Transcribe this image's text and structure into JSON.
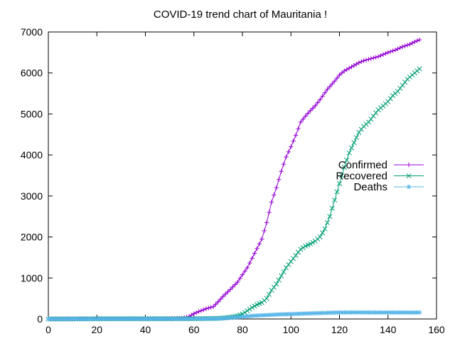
{
  "chart_data": {
    "type": "line",
    "title": "COVID-19 trend chart of Mauritania !",
    "xlabel": "",
    "ylabel": "",
    "xlim": [
      0,
      160
    ],
    "ylim": [
      0,
      7000
    ],
    "xticks": [
      0,
      20,
      40,
      60,
      80,
      100,
      120,
      140,
      160
    ],
    "yticks": [
      0,
      1000,
      2000,
      3000,
      4000,
      5000,
      6000,
      7000
    ],
    "grid": false,
    "legend_position": "right",
    "series": [
      {
        "name": "Confirmed",
        "color": "#9400d3",
        "marker": "plus",
        "points": [
          [
            0,
            0
          ],
          [
            10,
            2
          ],
          [
            20,
            6
          ],
          [
            30,
            7
          ],
          [
            40,
            8
          ],
          [
            50,
            9
          ],
          [
            55,
            20
          ],
          [
            58,
            60
          ],
          [
            60,
            130
          ],
          [
            62,
            180
          ],
          [
            65,
            250
          ],
          [
            68,
            300
          ],
          [
            70,
            420
          ],
          [
            72,
            550
          ],
          [
            75,
            720
          ],
          [
            78,
            900
          ],
          [
            80,
            1080
          ],
          [
            82,
            1250
          ],
          [
            85,
            1600
          ],
          [
            88,
            1950
          ],
          [
            90,
            2350
          ],
          [
            92,
            2850
          ],
          [
            94,
            3200
          ],
          [
            96,
            3600
          ],
          [
            98,
            3950
          ],
          [
            100,
            4200
          ],
          [
            102,
            4480
          ],
          [
            104,
            4800
          ],
          [
            106,
            4950
          ],
          [
            108,
            5080
          ],
          [
            110,
            5200
          ],
          [
            112,
            5350
          ],
          [
            115,
            5600
          ],
          [
            118,
            5800
          ],
          [
            120,
            5950
          ],
          [
            122,
            6050
          ],
          [
            125,
            6150
          ],
          [
            128,
            6250
          ],
          [
            130,
            6300
          ],
          [
            133,
            6350
          ],
          [
            136,
            6400
          ],
          [
            138,
            6450
          ],
          [
            140,
            6500
          ],
          [
            143,
            6560
          ],
          [
            146,
            6640
          ],
          [
            149,
            6700
          ],
          [
            151,
            6760
          ],
          [
            153,
            6810
          ]
        ]
      },
      {
        "name": "Recovered",
        "color": "#009e73",
        "marker": "x",
        "points": [
          [
            0,
            0
          ],
          [
            10,
            2
          ],
          [
            20,
            5
          ],
          [
            30,
            6
          ],
          [
            40,
            6
          ],
          [
            50,
            6
          ],
          [
            60,
            8
          ],
          [
            70,
            15
          ],
          [
            75,
            40
          ],
          [
            78,
            80
          ],
          [
            80,
            120
          ],
          [
            82,
            200
          ],
          [
            84,
            280
          ],
          [
            86,
            350
          ],
          [
            88,
            400
          ],
          [
            90,
            500
          ],
          [
            92,
            700
          ],
          [
            94,
            850
          ],
          [
            96,
            1050
          ],
          [
            98,
            1250
          ],
          [
            100,
            1400
          ],
          [
            102,
            1550
          ],
          [
            104,
            1700
          ],
          [
            106,
            1780
          ],
          [
            108,
            1830
          ],
          [
            110,
            1900
          ],
          [
            112,
            2000
          ],
          [
            114,
            2200
          ],
          [
            116,
            2500
          ],
          [
            118,
            2900
          ],
          [
            120,
            3300
          ],
          [
            122,
            3700
          ],
          [
            124,
            4050
          ],
          [
            126,
            4300
          ],
          [
            128,
            4550
          ],
          [
            130,
            4700
          ],
          [
            132,
            4800
          ],
          [
            134,
            4950
          ],
          [
            136,
            5100
          ],
          [
            138,
            5200
          ],
          [
            140,
            5300
          ],
          [
            142,
            5450
          ],
          [
            144,
            5550
          ],
          [
            146,
            5700
          ],
          [
            148,
            5850
          ],
          [
            150,
            5950
          ],
          [
            152,
            6050
          ],
          [
            153,
            6100
          ]
        ]
      },
      {
        "name": "Deaths",
        "color": "#56b4e9",
        "marker": "star",
        "points": [
          [
            0,
            0
          ],
          [
            20,
            1
          ],
          [
            40,
            2
          ],
          [
            60,
            3
          ],
          [
            65,
            5
          ],
          [
            70,
            10
          ],
          [
            75,
            30
          ],
          [
            80,
            55
          ],
          [
            85,
            80
          ],
          [
            90,
            95
          ],
          [
            95,
            110
          ],
          [
            100,
            120
          ],
          [
            105,
            130
          ],
          [
            110,
            140
          ],
          [
            115,
            150
          ],
          [
            120,
            158
          ],
          [
            125,
            160
          ],
          [
            130,
            160
          ],
          [
            135,
            158
          ],
          [
            140,
            158
          ],
          [
            145,
            158
          ],
          [
            150,
            158
          ],
          [
            153,
            158
          ]
        ]
      }
    ]
  }
}
